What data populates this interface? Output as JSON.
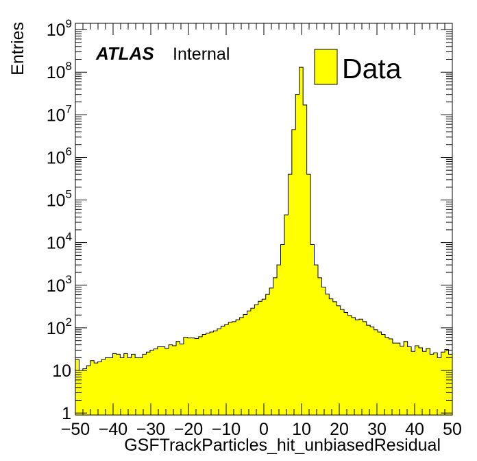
{
  "chart_data": {
    "type": "histogram",
    "title": "",
    "brand": {
      "experiment": "ATLAS",
      "status": "Internal"
    },
    "xlabel": "GSFTrackParticles_hit_unbiasedResidual",
    "ylabel": "Entries",
    "xlim": [
      -50,
      50
    ],
    "ylim": [
      0.9,
      1400000000.0
    ],
    "log_y": true,
    "grid": false,
    "legend_position": "top-right",
    "x_ticks": [
      {
        "value": -50,
        "label": "−50"
      },
      {
        "value": -40,
        "label": "−40"
      },
      {
        "value": -30,
        "label": "−30"
      },
      {
        "value": -20,
        "label": "−20"
      },
      {
        "value": -10,
        "label": "−10"
      },
      {
        "value": 0,
        "label": "0"
      },
      {
        "value": 10,
        "label": "10"
      },
      {
        "value": 20,
        "label": "20"
      },
      {
        "value": 30,
        "label": "30"
      },
      {
        "value": 40,
        "label": "40"
      },
      {
        "value": 50,
        "label": "50"
      }
    ],
    "y_ticks": [
      {
        "value": 1,
        "base": "1",
        "exp": ""
      },
      {
        "value": 10,
        "base": "10",
        "exp": ""
      },
      {
        "value": 100,
        "base": "10",
        "exp": "2"
      },
      {
        "value": 1000,
        "base": "10",
        "exp": "3"
      },
      {
        "value": 10000,
        "base": "10",
        "exp": "4"
      },
      {
        "value": 100000,
        "base": "10",
        "exp": "5"
      },
      {
        "value": 1000000,
        "base": "10",
        "exp": "6"
      },
      {
        "value": 10000000,
        "base": "10",
        "exp": "7"
      },
      {
        "value": 100000000,
        "base": "10",
        "exp": "8"
      },
      {
        "value": 1000000000,
        "base": "10",
        "exp": "9"
      }
    ],
    "series": [
      {
        "name": "Data",
        "color": "#ffff00",
        "edge_color": "#000000",
        "bin_edges": [
          -50,
          50
        ],
        "values": [
          18,
          10,
          11,
          13,
          17,
          15,
          16,
          18,
          20,
          20,
          25,
          24,
          20,
          25,
          20,
          24,
          20,
          20,
          24,
          27,
          30,
          32,
          36,
          36,
          33,
          40,
          38,
          48,
          42,
          60,
          58,
          58,
          56,
          62,
          70,
          75,
          80,
          85,
          95,
          110,
          120,
          135,
          140,
          155,
          175,
          205,
          250,
          290,
          350,
          420,
          470,
          610,
          860,
          1500,
          3000,
          9000,
          45000,
          400000,
          4500000,
          30000000,
          130000000,
          17000000.0,
          400000,
          9000,
          3000,
          1500,
          900,
          620,
          480,
          410,
          330,
          270,
          230,
          195,
          175,
          155,
          160,
          140,
          115,
          105,
          90,
          80,
          70,
          60,
          55,
          44,
          44,
          37,
          48,
          36,
          28,
          38,
          34,
          28,
          33,
          24,
          26,
          20,
          27,
          31,
          24
        ]
      }
    ]
  }
}
